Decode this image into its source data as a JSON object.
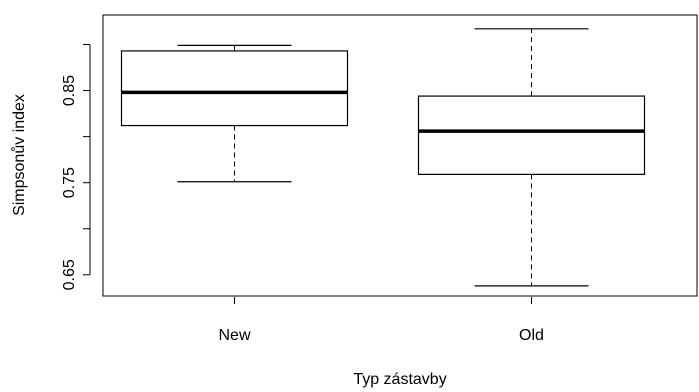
{
  "chart_data": {
    "type": "boxplot",
    "title": "",
    "xlabel": "Typ zástavby",
    "ylabel": "Simpsonův index",
    "ylim": [
      0.627,
      0.932
    ],
    "y_ticks": [
      0.65,
      0.7,
      0.75,
      0.8,
      0.85,
      0.9
    ],
    "y_tick_labels": [
      "0.65",
      "",
      "0.75",
      "",
      "0.85",
      ""
    ],
    "grid": false,
    "categories": [
      "New",
      "Old"
    ],
    "boxes": [
      {
        "category": "New",
        "whisker_low": 0.751,
        "q1": 0.812,
        "median": 0.848,
        "q3": 0.893,
        "whisker_high": 0.899
      },
      {
        "category": "Old",
        "whisker_low": 0.638,
        "q1": 0.759,
        "median": 0.806,
        "q3": 0.844,
        "whisker_high": 0.917
      }
    ]
  }
}
